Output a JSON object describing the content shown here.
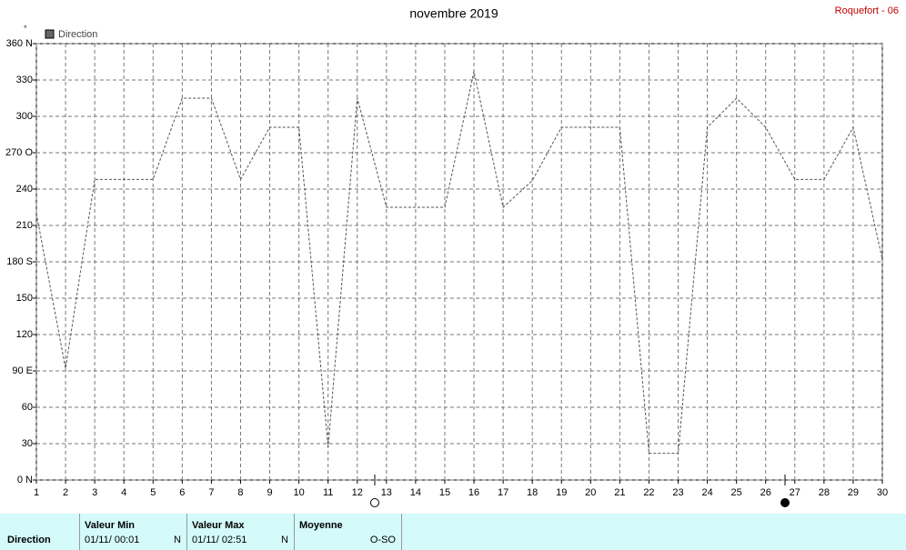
{
  "chart_data": {
    "type": "line",
    "title": "novembre 2019",
    "y_unit": "°",
    "x": [
      1,
      2,
      3,
      4,
      5,
      6,
      7,
      8,
      9,
      10,
      11,
      12,
      13,
      14,
      15,
      16,
      17,
      18,
      19,
      20,
      21,
      22,
      23,
      24,
      25,
      26,
      27,
      28,
      29,
      30
    ],
    "series": [
      {
        "name": "Direction",
        "color": "#555555",
        "values": [
          220,
          92,
          248,
          248,
          248,
          315,
          315,
          248,
          291,
          291,
          27,
          315,
          225,
          225,
          225,
          337,
          225,
          247,
          291,
          291,
          291,
          22,
          22,
          291,
          315,
          291,
          248,
          248,
          291,
          182
        ]
      }
    ],
    "xlim": [
      1,
      30
    ],
    "xticks": [
      1,
      2,
      3,
      4,
      5,
      6,
      7,
      8,
      9,
      10,
      11,
      12,
      13,
      14,
      15,
      16,
      17,
      18,
      19,
      20,
      21,
      22,
      23,
      24,
      25,
      26,
      27,
      28,
      29,
      30
    ],
    "ylim": [
      0,
      360
    ],
    "yticks": [
      {
        "value": 0,
        "label": "0  N"
      },
      30,
      60,
      {
        "value": 90,
        "label": "90  E"
      },
      120,
      150,
      {
        "value": 180,
        "label": "180 S"
      },
      210,
      240,
      {
        "value": 270,
        "label": "270 O"
      },
      300,
      330,
      {
        "value": 360,
        "label": "360 N"
      }
    ],
    "grid": true
  },
  "station": "Roquefort - 06",
  "summary": {
    "label": "Direction",
    "columns": [
      {
        "title": "Valeur Min",
        "date": "01/11/  00:01",
        "value": "N"
      },
      {
        "title": "Valeur Max",
        "date": "01/11/  02:51",
        "value": "N"
      },
      {
        "title": "Moyenne",
        "value": "O-SO"
      }
    ]
  }
}
